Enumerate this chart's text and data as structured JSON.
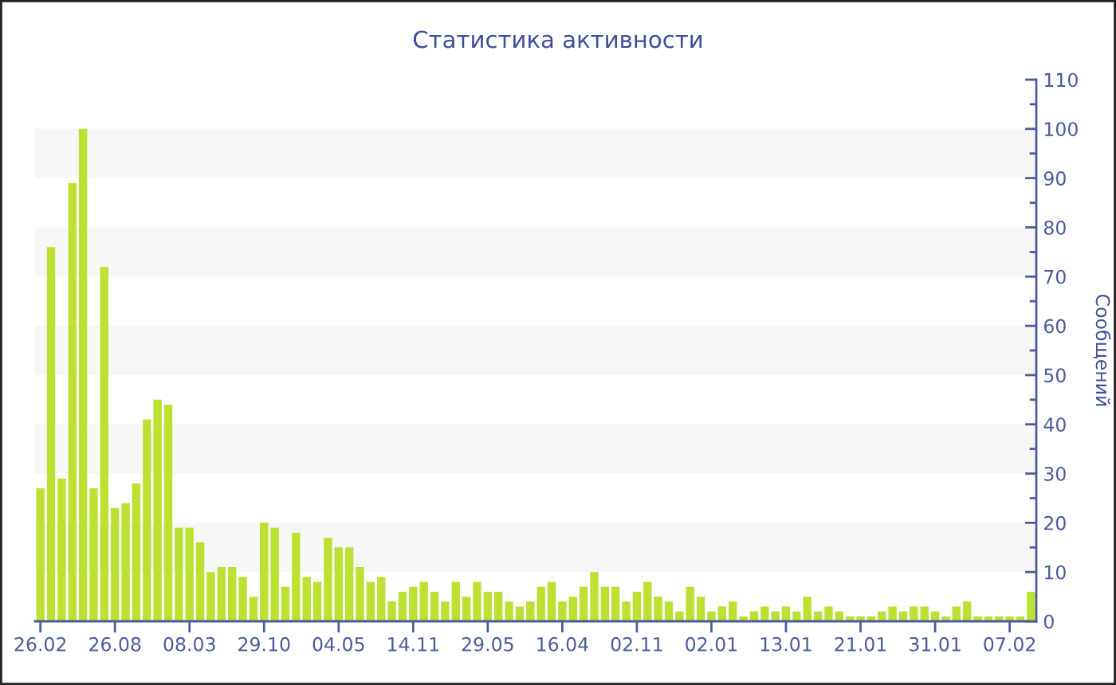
{
  "chart_data": {
    "type": "bar",
    "title": "Статистика активности",
    "ylabel": "Сообщений",
    "categories": [
      "26.02",
      null,
      null,
      null,
      null,
      null,
      null,
      "26.08",
      null,
      null,
      null,
      null,
      null,
      null,
      "08.03",
      null,
      null,
      null,
      null,
      null,
      null,
      "29.10",
      null,
      null,
      null,
      null,
      null,
      null,
      "04.05",
      null,
      null,
      null,
      null,
      null,
      null,
      "14.11",
      null,
      null,
      null,
      null,
      null,
      null,
      "29.05",
      null,
      null,
      null,
      null,
      null,
      null,
      "16.04",
      null,
      null,
      null,
      null,
      null,
      null,
      "02.11",
      null,
      null,
      null,
      null,
      null,
      null,
      "02.01",
      null,
      null,
      null,
      null,
      null,
      null,
      "13.01",
      null,
      null,
      null,
      null,
      null,
      null,
      "21.01",
      null,
      null,
      null,
      null,
      null,
      null,
      "31.01",
      null,
      null,
      null,
      null,
      null,
      null,
      "07.02",
      null,
      null
    ],
    "values": [
      27,
      76,
      29,
      89,
      100,
      27,
      72,
      23,
      24,
      28,
      41,
      45,
      44,
      19,
      19,
      16,
      10,
      11,
      11,
      9,
      5,
      20,
      19,
      7,
      18,
      9,
      8,
      17,
      15,
      15,
      11,
      8,
      9,
      4,
      6,
      7,
      8,
      6,
      4,
      8,
      5,
      8,
      6,
      6,
      4,
      3,
      4,
      7,
      8,
      4,
      5,
      7,
      10,
      7,
      7,
      4,
      6,
      8,
      5,
      4,
      2,
      7,
      5,
      2,
      3,
      4,
      1,
      2,
      3,
      2,
      3,
      2,
      5,
      2,
      3,
      2,
      1,
      1,
      1,
      2,
      3,
      2,
      3,
      3,
      2,
      1,
      3,
      4,
      1,
      1,
      1,
      1,
      1,
      6
    ],
    "color": "#bce133",
    "ylim": [
      0,
      110
    ],
    "yticks": [
      0,
      10,
      20,
      30,
      40,
      50,
      60,
      70,
      80,
      90,
      100,
      110
    ],
    "bands": [
      {
        "axis": "y",
        "from": 10,
        "to": 20,
        "color": "#f7f7f7"
      },
      {
        "axis": "y",
        "from": 30,
        "to": 40,
        "color": "#f7f7f7"
      },
      {
        "axis": "y",
        "from": 50,
        "to": 60,
        "color": "#f7f7f7"
      },
      {
        "axis": "y",
        "from": 70,
        "to": 80,
        "color": "#f7f7f7"
      },
      {
        "axis": "y",
        "from": 90,
        "to": 100,
        "color": "#f7f7f7"
      }
    ]
  }
}
